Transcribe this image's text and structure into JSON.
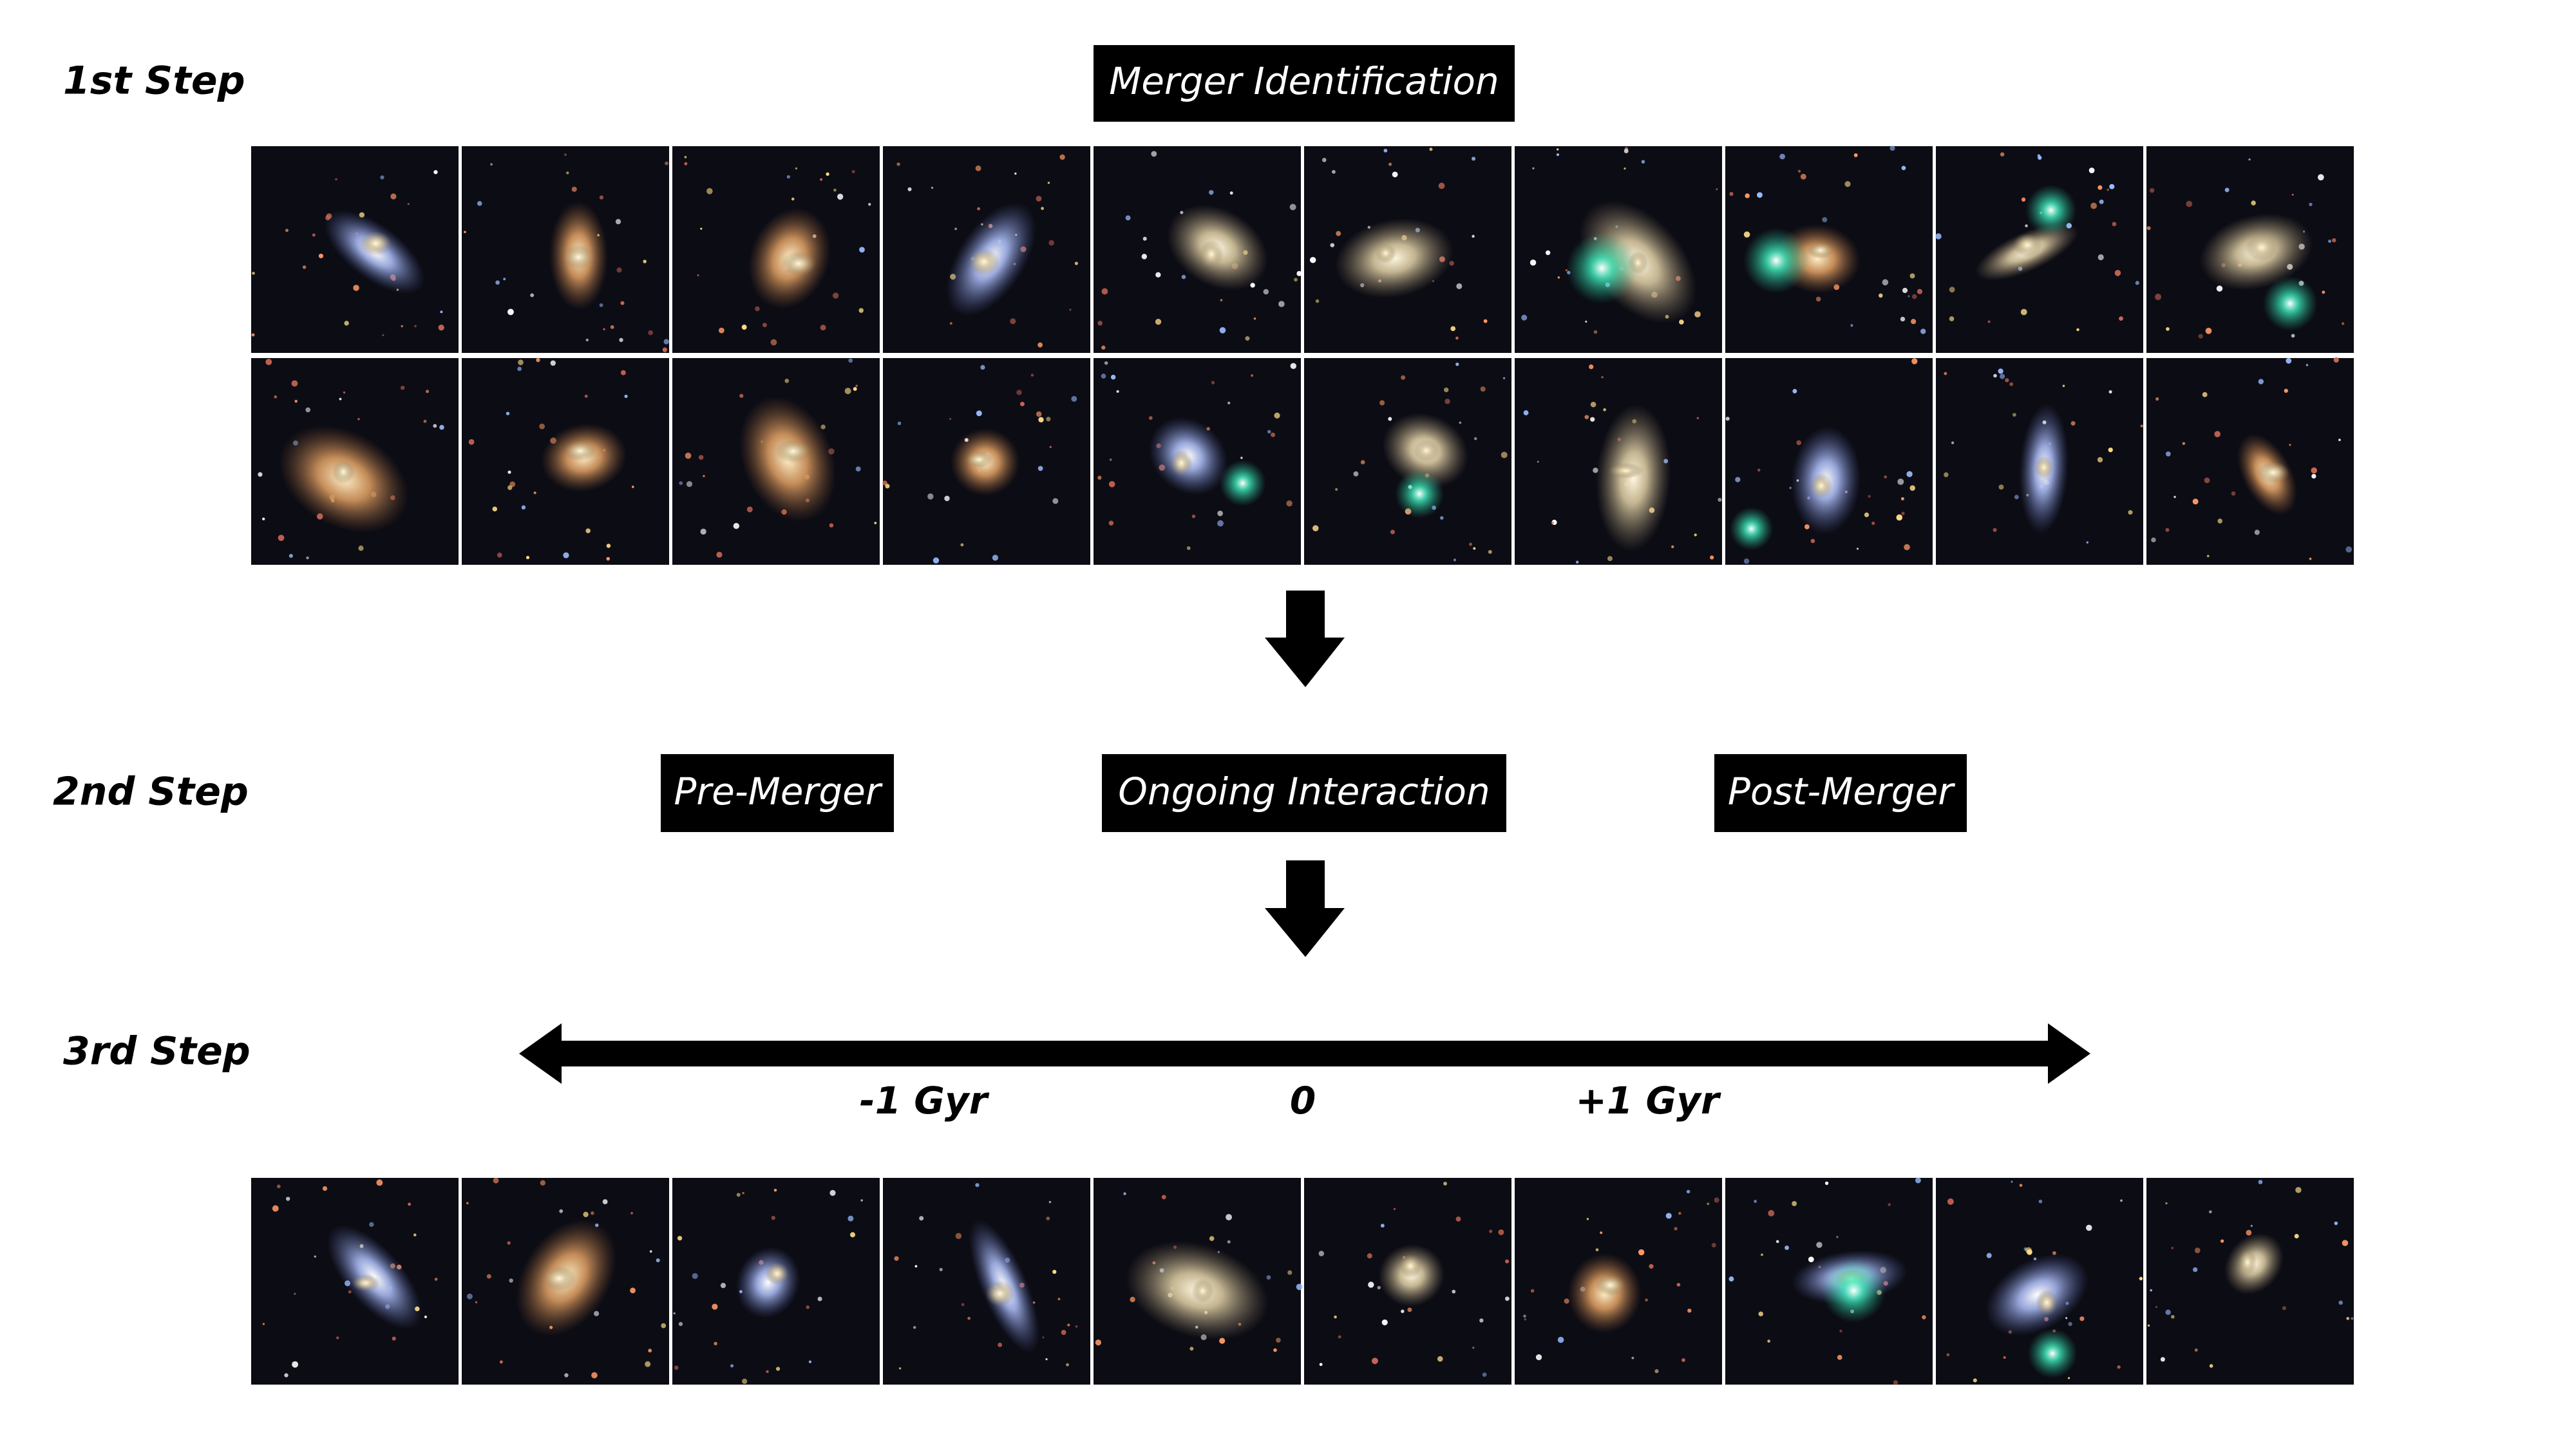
{
  "steps": {
    "first": "1st Step",
    "second": "2nd Step",
    "third": "3rd Step"
  },
  "first_step_box": "Merger Identification",
  "second_step_boxes": [
    "Pre-Merger",
    "Ongoing Interaction",
    "Post-Merger"
  ],
  "timeline_labels": [
    "-1 Gyr",
    "0",
    "+1 Gyr"
  ]
}
